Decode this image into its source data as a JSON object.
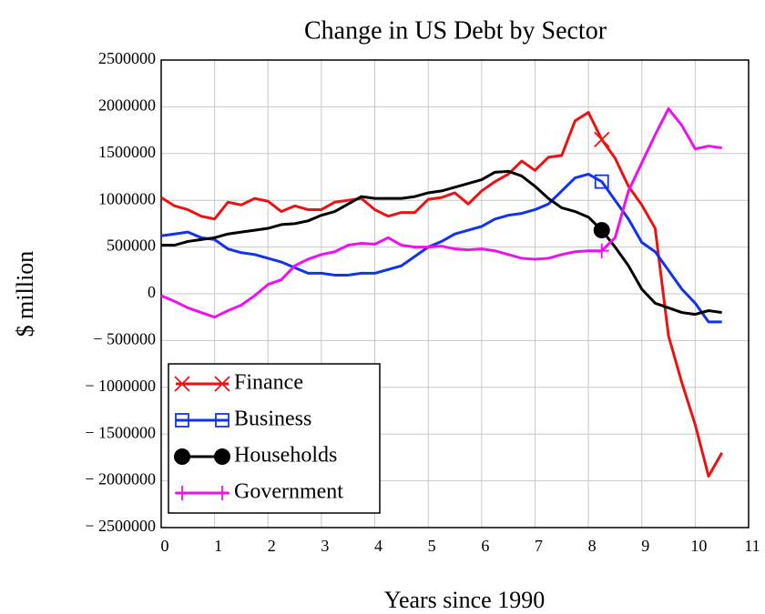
{
  "chart_data": {
    "type": "line",
    "title": "Change in US Debt by Sector",
    "x_label": "Years since 1990",
    "y_label": "$ million",
    "x": [
      0,
      0.25,
      0.5,
      0.75,
      1,
      1.25,
      1.5,
      1.75,
      2,
      2.25,
      2.5,
      2.75,
      3,
      3.25,
      3.5,
      3.75,
      4,
      4.25,
      4.5,
      4.75,
      5,
      5.25,
      5.5,
      5.75,
      6,
      6.25,
      6.5,
      6.75,
      7,
      7.25,
      7.5,
      7.75,
      8,
      8.25,
      8.5,
      8.75,
      9,
      9.25,
      9.5,
      9.75,
      10,
      10.25,
      10.5
    ],
    "series": [
      {
        "name": "Finance",
        "color": "#ee1111",
        "marker": "x",
        "values": [
          1030000,
          940000,
          900000,
          830000,
          800000,
          980000,
          950000,
          1020000,
          990000,
          880000,
          940000,
          900000,
          900000,
          980000,
          1000000,
          1020000,
          900000,
          830000,
          870000,
          870000,
          1010000,
          1030000,
          1080000,
          960000,
          1100000,
          1200000,
          1280000,
          1420000,
          1320000,
          1460000,
          1480000,
          1850000,
          1940000,
          1650000,
          1450000,
          1150000,
          950000,
          700000,
          -450000,
          -950000,
          -1400000,
          -1950000,
          -1700000
        ]
      },
      {
        "name": "Business",
        "color": "#1133ee",
        "marker": "square",
        "values": [
          620000,
          640000,
          660000,
          600000,
          580000,
          480000,
          440000,
          420000,
          380000,
          340000,
          280000,
          220000,
          220000,
          200000,
          200000,
          220000,
          220000,
          260000,
          300000,
          400000,
          500000,
          560000,
          640000,
          680000,
          720000,
          800000,
          840000,
          860000,
          900000,
          960000,
          1100000,
          1240000,
          1280000,
          1200000,
          1000000,
          800000,
          550000,
          450000,
          250000,
          50000,
          -100000,
          -300000,
          -300000
        ]
      },
      {
        "name": "Households",
        "color": "#000000",
        "marker": "circle",
        "values": [
          520000,
          520000,
          560000,
          580000,
          600000,
          640000,
          660000,
          680000,
          700000,
          740000,
          750000,
          780000,
          840000,
          880000,
          960000,
          1040000,
          1020000,
          1020000,
          1020000,
          1040000,
          1080000,
          1100000,
          1140000,
          1180000,
          1220000,
          1300000,
          1310000,
          1260000,
          1150000,
          1020000,
          920000,
          880000,
          820000,
          680000,
          500000,
          300000,
          50000,
          -100000,
          -150000,
          -200000,
          -220000,
          -180000,
          -200000
        ]
      },
      {
        "name": "Government",
        "color": "#ee11ee",
        "marker": "plus",
        "values": [
          -20000,
          -80000,
          -150000,
          -200000,
          -250000,
          -180000,
          -120000,
          -20000,
          100000,
          150000,
          300000,
          370000,
          420000,
          450000,
          520000,
          540000,
          530000,
          600000,
          520000,
          500000,
          500000,
          510000,
          480000,
          470000,
          480000,
          460000,
          420000,
          380000,
          370000,
          380000,
          420000,
          450000,
          460000,
          460000,
          600000,
          1100000,
          1400000,
          1700000,
          1980000,
          1800000,
          1550000,
          1580000,
          1560000
        ]
      }
    ],
    "xlim": [
      0,
      11
    ],
    "xticks": [
      0,
      1,
      2,
      3,
      4,
      5,
      6,
      7,
      8,
      9,
      10,
      11
    ],
    "ylim": [
      -2500000,
      2500000
    ],
    "yticks": [
      {
        "value": -2500000,
        "label": "− 2500000"
      },
      {
        "value": -2000000,
        "label": "− 2000000"
      },
      {
        "value": -1500000,
        "label": "− 1500000"
      },
      {
        "value": -1000000,
        "label": "− 1000000"
      },
      {
        "value": -500000,
        "label": "− 500000"
      },
      0,
      500000,
      1000000,
      1500000,
      2000000,
      2500000
    ],
    "grid": true,
    "legend": "lower left"
  }
}
